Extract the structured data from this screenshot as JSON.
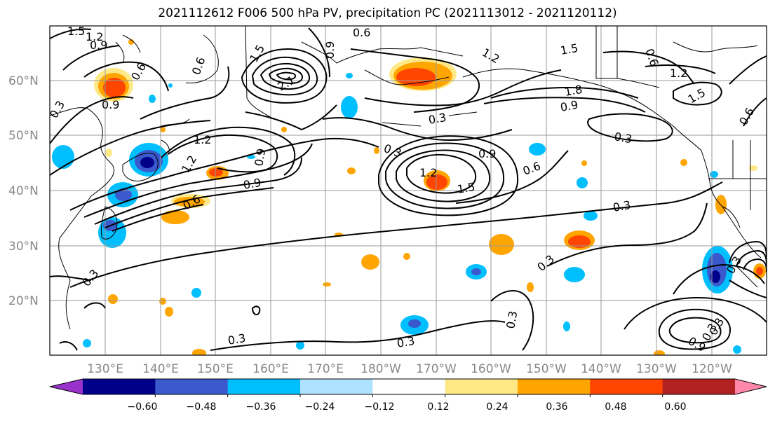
{
  "title": "2021112612 F006 500 hPa PV, precipitation PC (2021113012 - 2021120112)",
  "lat_labels": [
    "60°N",
    "50°N",
    "40°N",
    "30°N",
    "20°N"
  ],
  "lon_labels": [
    "130°E",
    "140°E",
    "150°E",
    "160°E",
    "170°E",
    "180°W",
    "170°W",
    "160°W",
    "150°W",
    "140°W",
    "130°W",
    "120°W"
  ],
  "contour_labels": [
    "1.5",
    "1.2",
    "0.9",
    "0.6",
    "0.3",
    "1.2",
    "0.9",
    "0.6",
    "2.1",
    "1.5",
    "0.9",
    "0.6",
    "1.2",
    "0.3",
    "0.3",
    "0.9",
    "1.8",
    "1.5",
    "0.9",
    "0.6",
    "1.2",
    "1.5",
    "0.3",
    "0.3",
    "0.9",
    "1.2",
    "1.5",
    "0.6",
    "0.3",
    "1.2",
    "0.9",
    "0.6",
    "0.6",
    "0.3",
    "0.3",
    "0.3",
    "0.3",
    "0.3",
    "0.3",
    "0.9",
    "0.3"
  ],
  "colorbar": {
    "ticks": [
      "−0.60",
      "−0.48",
      "−0.36",
      "−0.24",
      "−0.12",
      "0.12",
      "0.24",
      "0.36",
      "0.48",
      "0.60"
    ],
    "colors": [
      "#9932CC",
      "#00008B",
      "#3A59CC",
      "#00BFFF",
      "#B0E2FF",
      "#FFFFFF",
      "#FFE987",
      "#FFA500",
      "#FF4500",
      "#B22222",
      "#FF88AA"
    ]
  }
}
